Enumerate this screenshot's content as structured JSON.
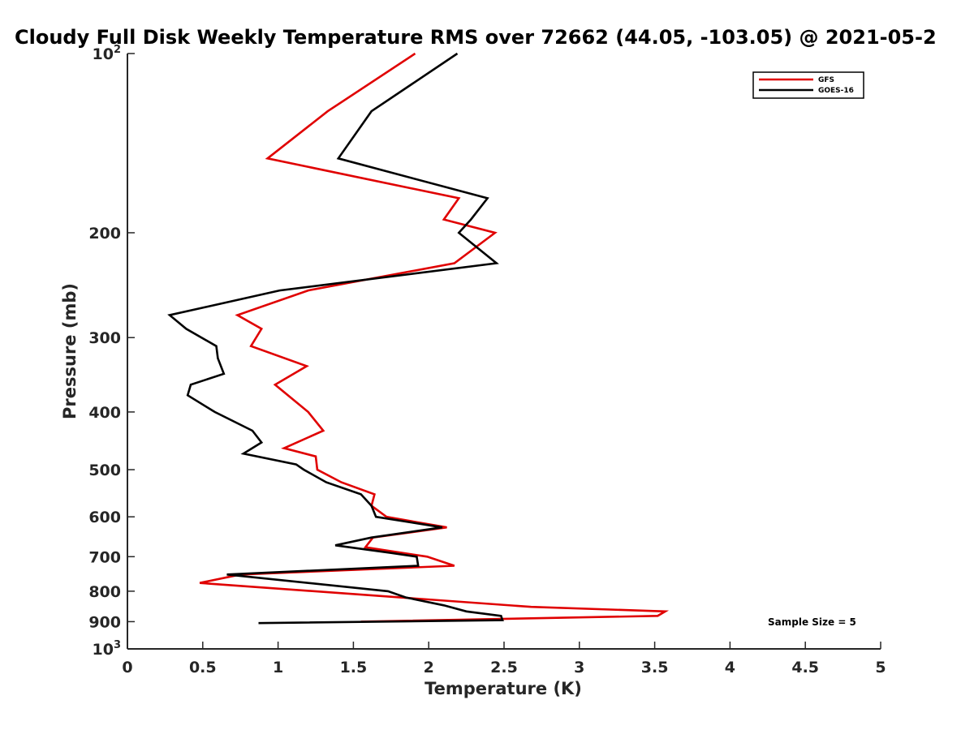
{
  "chart_data": {
    "type": "line",
    "title": "Cloudy Full Disk Weekly Temperature RMS over 72662 (44.05, -103.05) @ 2021-05-2",
    "xlabel": "Temperature (K)",
    "ylabel": "Pressure (mb)",
    "xlim": [
      0,
      5
    ],
    "ylim": [
      100,
      1000
    ],
    "y_scale": "log",
    "y_reversed": true,
    "x_ticks": [
      "0",
      "0.5",
      "1",
      "1.5",
      "2",
      "2.5",
      "3",
      "3.5",
      "4",
      "4.5",
      "5"
    ],
    "y_ticks": [
      {
        "value": 100,
        "base": "10",
        "exp": "2"
      },
      {
        "value": 200,
        "label": "200"
      },
      {
        "value": 300,
        "label": "300"
      },
      {
        "value": 400,
        "label": "400"
      },
      {
        "value": 500,
        "label": "500"
      },
      {
        "value": 600,
        "label": "600"
      },
      {
        "value": 700,
        "label": "700"
      },
      {
        "value": 800,
        "label": "800"
      },
      {
        "value": 900,
        "label": "900"
      },
      {
        "value": 1000,
        "base": "10",
        "exp": "3"
      }
    ],
    "legend_position": "top-right",
    "series": [
      {
        "name": "GFS",
        "color": "#e00000",
        "points": [
          [
            1.91,
            100
          ],
          [
            1.33,
            125
          ],
          [
            0.93,
            150
          ],
          [
            2.2,
            175
          ],
          [
            2.1,
            190
          ],
          [
            2.44,
            200
          ],
          [
            2.17,
            225
          ],
          [
            1.2,
            250
          ],
          [
            0.73,
            275
          ],
          [
            0.89,
            290
          ],
          [
            0.82,
            310
          ],
          [
            1.19,
            335
          ],
          [
            0.98,
            360
          ],
          [
            1.2,
            400
          ],
          [
            1.3,
            430
          ],
          [
            1.04,
            460
          ],
          [
            1.25,
            475
          ],
          [
            1.26,
            500
          ],
          [
            1.42,
            525
          ],
          [
            1.64,
            550
          ],
          [
            1.62,
            575
          ],
          [
            1.72,
            600
          ],
          [
            2.12,
            625
          ],
          [
            1.63,
            650
          ],
          [
            1.58,
            675
          ],
          [
            1.99,
            700
          ],
          [
            2.17,
            725
          ],
          [
            0.75,
            750
          ],
          [
            0.48,
            775
          ],
          [
            2.68,
            850
          ],
          [
            3.57,
            865
          ],
          [
            3.52,
            880
          ],
          [
            1.55,
            900
          ]
        ]
      },
      {
        "name": "GOES-16",
        "color": "#000000",
        "points": [
          [
            2.19,
            100
          ],
          [
            1.62,
            125
          ],
          [
            1.4,
            150
          ],
          [
            2.39,
            175
          ],
          [
            2.28,
            190
          ],
          [
            2.2,
            200
          ],
          [
            2.45,
            225
          ],
          [
            1.01,
            250
          ],
          [
            0.28,
            275
          ],
          [
            0.39,
            290
          ],
          [
            0.59,
            310
          ],
          [
            0.6,
            325
          ],
          [
            0.64,
            345
          ],
          [
            0.42,
            360
          ],
          [
            0.4,
            375
          ],
          [
            0.58,
            400
          ],
          [
            0.83,
            430
          ],
          [
            0.89,
            450
          ],
          [
            0.77,
            470
          ],
          [
            1.12,
            490
          ],
          [
            1.17,
            500
          ],
          [
            1.32,
            525
          ],
          [
            1.55,
            550
          ],
          [
            1.62,
            575
          ],
          [
            1.65,
            600
          ],
          [
            2.09,
            625
          ],
          [
            1.62,
            650
          ],
          [
            1.38,
            670
          ],
          [
            1.75,
            690
          ],
          [
            1.92,
            700
          ],
          [
            1.93,
            725
          ],
          [
            0.66,
            750
          ],
          [
            1.73,
            800
          ],
          [
            1.85,
            820
          ],
          [
            2.1,
            845
          ],
          [
            2.25,
            865
          ],
          [
            2.48,
            880
          ],
          [
            2.49,
            895
          ],
          [
            0.87,
            905
          ]
        ]
      }
    ],
    "annotation": "Sample Size = 5"
  }
}
